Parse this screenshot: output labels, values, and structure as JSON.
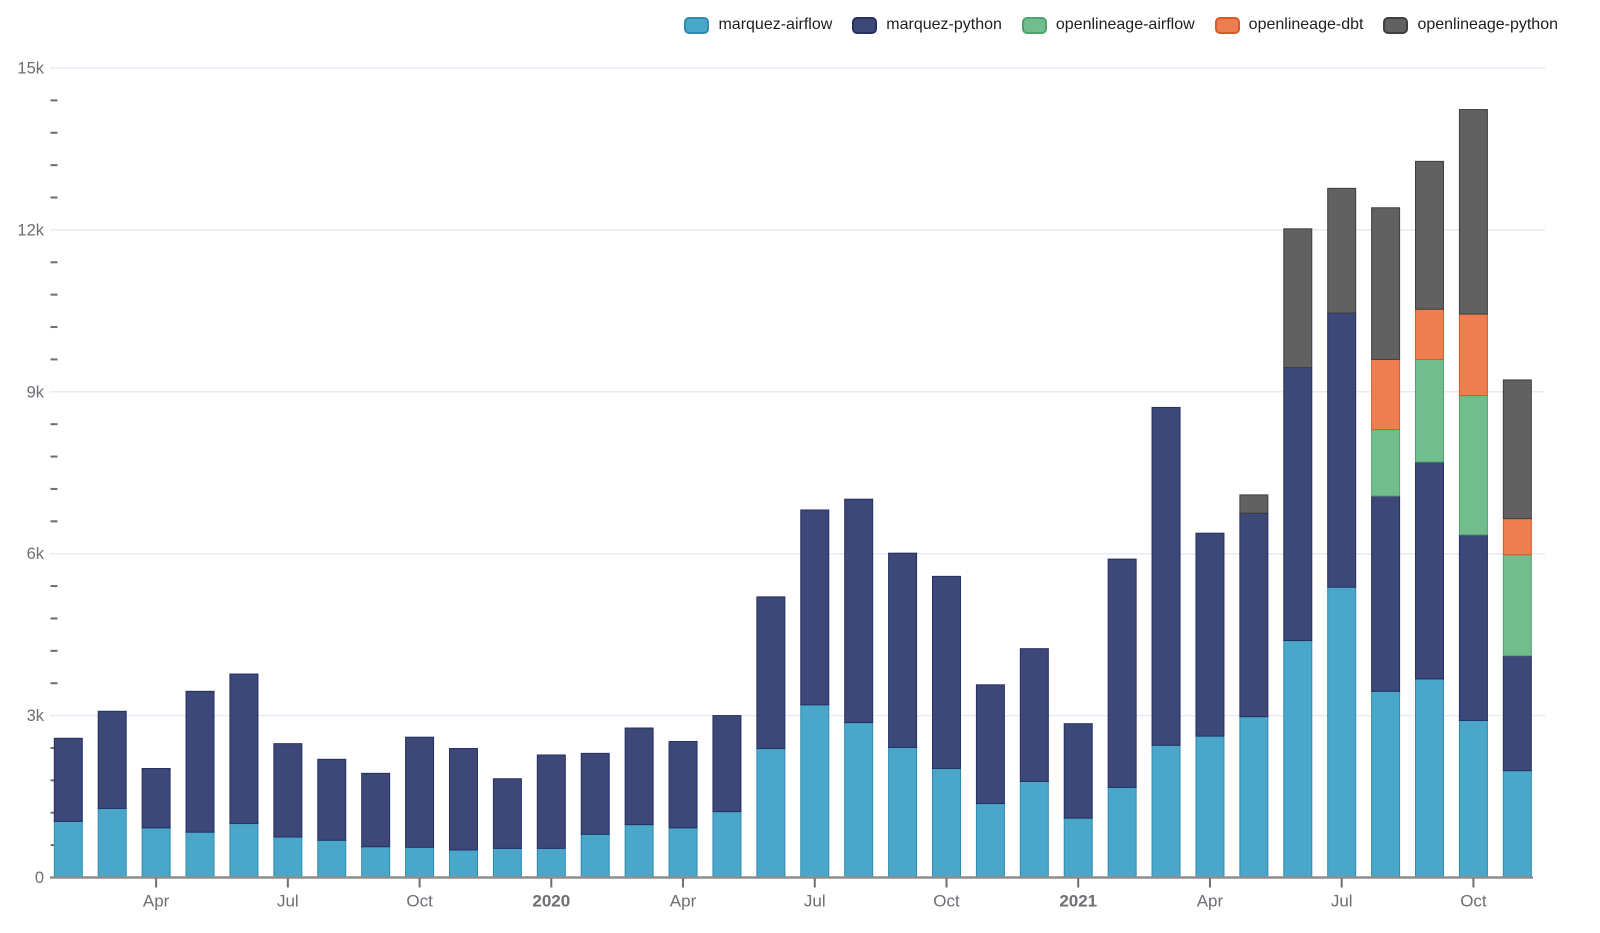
{
  "chart_data": {
    "type": "bar",
    "subtype": "stacked",
    "title": "",
    "xlabel": "",
    "ylabel": "",
    "ylim": [
      0,
      15000
    ],
    "grid": "horizontal",
    "legend_position": "top-right",
    "x": [
      "2019-02",
      "2019-03",
      "2019-04",
      "2019-05",
      "2019-06",
      "2019-07",
      "2019-08",
      "2019-09",
      "2019-10",
      "2019-11",
      "2019-12",
      "2020-01",
      "2020-02",
      "2020-03",
      "2020-04",
      "2020-05",
      "2020-06",
      "2020-07",
      "2020-08",
      "2020-09",
      "2020-10",
      "2020-11",
      "2020-12",
      "2021-01",
      "2021-02",
      "2021-03",
      "2021-04",
      "2021-05",
      "2021-06",
      "2021-07",
      "2021-08",
      "2021-09",
      "2021-10",
      "2021-11"
    ],
    "series": [
      {
        "name": "marquez-airflow",
        "color": "#4ba7c9",
        "border": "#2f8cae",
        "values": [
          1040,
          1280,
          920,
          840,
          1000,
          750,
          690,
          570,
          560,
          510,
          540,
          540,
          800,
          980,
          920,
          1220,
          2390,
          3200,
          2870,
          2410,
          2020,
          1370,
          1780,
          1100,
          1670,
          2450,
          2620,
          2980,
          4390,
          5380,
          3450,
          3680,
          2910,
          1980
        ]
      },
      {
        "name": "marquez-python",
        "color": "#3d4879",
        "border": "#252f60",
        "values": [
          1540,
          1800,
          1100,
          2610,
          2770,
          1730,
          1500,
          1360,
          2040,
          1880,
          1290,
          1730,
          1500,
          1790,
          1600,
          1780,
          2810,
          3610,
          4140,
          3600,
          3560,
          2200,
          2460,
          1750,
          4230,
          6260,
          3760,
          3770,
          5060,
          5080,
          3620,
          4020,
          3440,
          2130
        ]
      },
      {
        "name": "openlineage-airflow",
        "color": "#72bd8e",
        "border": "#50a271",
        "values": [
          0,
          0,
          0,
          0,
          0,
          0,
          0,
          0,
          0,
          0,
          0,
          0,
          0,
          0,
          0,
          0,
          0,
          0,
          0,
          0,
          0,
          0,
          0,
          0,
          0,
          0,
          0,
          0,
          0,
          0,
          1230,
          1900,
          2580,
          1870
        ]
      },
      {
        "name": "openlineage-dbt",
        "color": "#ee7e50",
        "border": "#d55a28",
        "values": [
          0,
          0,
          0,
          0,
          0,
          0,
          0,
          0,
          0,
          0,
          0,
          0,
          0,
          0,
          0,
          0,
          0,
          0,
          0,
          0,
          0,
          0,
          0,
          0,
          0,
          0,
          0,
          0,
          0,
          0,
          1300,
          930,
          1510,
          670
        ]
      },
      {
        "name": "openlineage-python",
        "color": "#616161",
        "border": "#3f3f3f",
        "values": [
          0,
          0,
          0,
          0,
          0,
          0,
          0,
          0,
          0,
          0,
          0,
          0,
          0,
          0,
          0,
          0,
          0,
          0,
          0,
          0,
          0,
          0,
          0,
          0,
          0,
          0,
          0,
          340,
          2570,
          2310,
          2810,
          2740,
          3790,
          2570
        ]
      }
    ],
    "y_ticks": [
      {
        "value": 0,
        "label": "0"
      },
      {
        "value": 3000,
        "label": "3k"
      },
      {
        "value": 6000,
        "label": "6k"
      },
      {
        "value": 9000,
        "label": "9k"
      },
      {
        "value": 12000,
        "label": "12k"
      },
      {
        "value": 15000,
        "label": "15k"
      }
    ],
    "y_minor_tick_step": 600,
    "x_ticks": [
      {
        "index": 2,
        "label": "Apr",
        "bold": false
      },
      {
        "index": 5,
        "label": "Jul",
        "bold": false
      },
      {
        "index": 8,
        "label": "Oct",
        "bold": false
      },
      {
        "index": 11,
        "label": "2020",
        "bold": true
      },
      {
        "index": 14,
        "label": "Apr",
        "bold": false
      },
      {
        "index": 17,
        "label": "Jul",
        "bold": false
      },
      {
        "index": 20,
        "label": "Oct",
        "bold": false
      },
      {
        "index": 23,
        "label": "2021",
        "bold": true
      },
      {
        "index": 26,
        "label": "Apr",
        "bold": false
      },
      {
        "index": 29,
        "label": "Jul",
        "bold": false
      },
      {
        "index": 32,
        "label": "Oct",
        "bold": false
      }
    ],
    "colors": {
      "gridline": "#e7ebf4",
      "axis_line": "#8d8d8d",
      "tick": "#6e6e6e",
      "axis_text": "#6e6e76",
      "legend_text": "#1f1f1f"
    }
  }
}
